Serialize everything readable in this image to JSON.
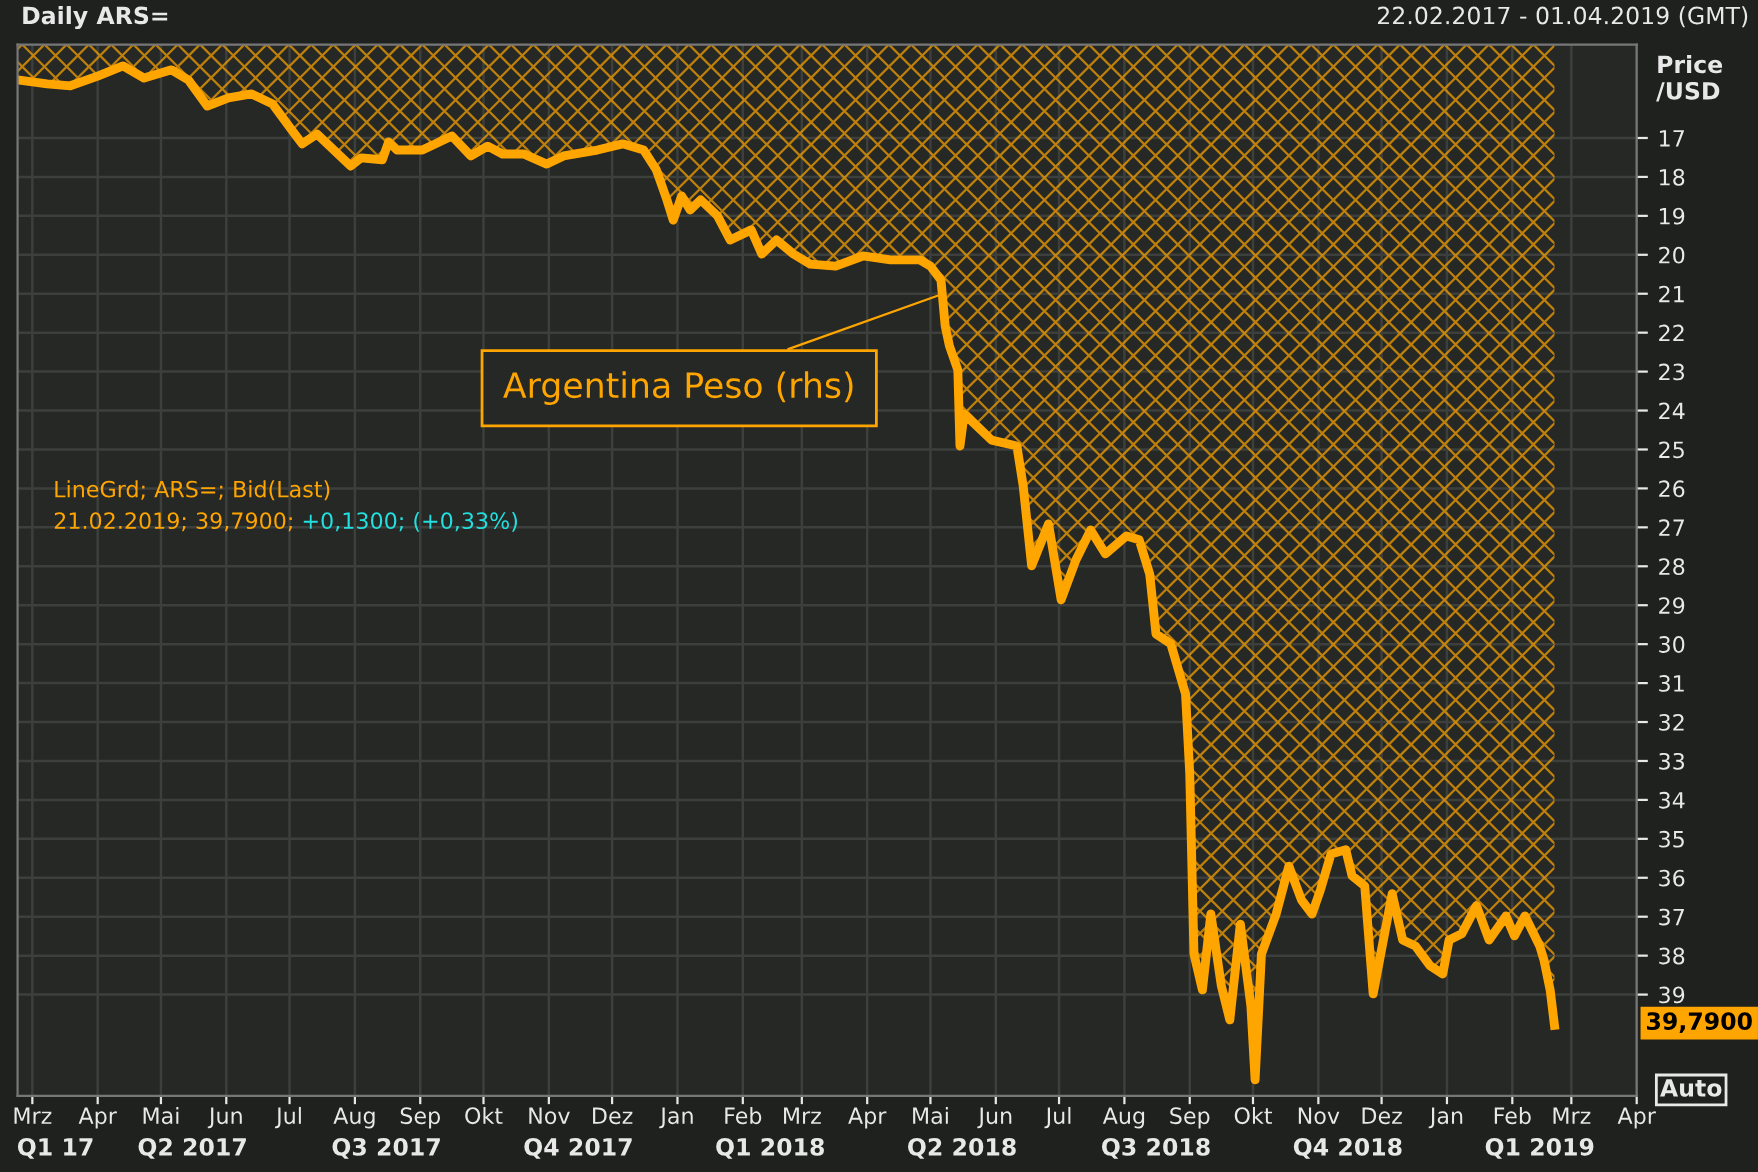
{
  "chart_data": {
    "type": "area",
    "title": "Daily ARS=",
    "subtitle": "22.02.2017 - 01.04.2019 (GMT)",
    "ylabel": "Price\n/USD",
    "x": [
      "2017-02-22",
      "2017-03-08",
      "2017-03-19",
      "2017-04-01",
      "2017-04-13",
      "2017-04-23",
      "2017-05-06",
      "2017-05-14",
      "2017-05-23",
      "2017-06-02",
      "2017-06-13",
      "2017-06-23",
      "2017-07-02",
      "2017-07-07",
      "2017-07-14",
      "2017-07-30",
      "2017-08-04",
      "2017-08-14",
      "2017-08-17",
      "2017-08-21",
      "2017-09-02",
      "2017-09-16",
      "2017-09-25",
      "2017-10-03",
      "2017-10-10",
      "2017-10-20",
      "2017-10-31",
      "2017-11-08",
      "2017-11-24",
      "2017-12-06",
      "2017-12-16",
      "2017-12-22",
      "2017-12-27",
      "2017-12-30",
      "2018-01-03",
      "2018-01-07",
      "2018-01-12",
      "2018-01-20",
      "2018-01-26",
      "2018-02-05",
      "2018-02-10",
      "2018-02-17",
      "2018-02-25",
      "2018-03-05",
      "2018-03-17",
      "2018-03-30",
      "2018-04-12",
      "2018-04-26",
      "2018-05-01",
      "2018-05-06",
      "2018-05-08",
      "2018-05-10",
      "2018-05-14",
      "2018-05-15",
      "2018-05-17",
      "2018-05-30",
      "2018-06-11",
      "2018-06-14",
      "2018-06-18",
      "2018-06-26",
      "2018-07-02",
      "2018-07-09",
      "2018-07-16",
      "2018-07-23",
      "2018-08-02",
      "2018-08-08",
      "2018-08-13",
      "2018-08-16",
      "2018-08-23",
      "2018-08-30",
      "2018-09-01",
      "2018-09-03",
      "2018-09-07",
      "2018-09-11",
      "2018-09-16",
      "2018-09-20",
      "2018-09-25",
      "2018-09-30",
      "2018-10-02",
      "2018-10-05",
      "2018-10-12",
      "2018-10-18",
      "2018-10-24",
      "2018-10-29",
      "2018-11-02",
      "2018-11-07",
      "2018-11-14",
      "2018-11-17",
      "2018-11-23",
      "2018-11-27",
      "2018-12-06",
      "2018-12-11",
      "2018-12-17",
      "2018-12-24",
      "2018-12-30",
      "2019-01-02",
      "2019-01-08",
      "2019-01-15",
      "2019-01-21",
      "2019-01-29",
      "2019-02-02",
      "2019-02-07",
      "2019-02-14",
      "2019-02-16",
      "2019-02-19",
      "2019-02-21"
    ],
    "series": [
      {
        "name": null,
        "color": "#ffa500",
        "values": [
          15.51,
          15.61,
          15.66,
          15.41,
          15.15,
          15.46,
          15.25,
          15.51,
          16.18,
          15.97,
          15.87,
          16.13,
          16.79,
          17.15,
          16.9,
          17.72,
          17.51,
          17.56,
          17.1,
          17.31,
          17.31,
          16.95,
          17.46,
          17.21,
          17.41,
          17.41,
          17.67,
          17.46,
          17.31,
          17.15,
          17.31,
          17.82,
          18.59,
          19.11,
          18.49,
          18.85,
          18.59,
          19.0,
          19.62,
          19.36,
          19.98,
          19.62,
          19.98,
          20.24,
          20.29,
          20.03,
          20.13,
          20.13,
          20.29,
          20.65,
          21.83,
          22.34,
          22.96,
          24.91,
          24.09,
          24.76,
          24.91,
          25.94,
          27.99,
          26.91,
          28.86,
          27.84,
          27.07,
          27.68,
          27.22,
          27.32,
          28.2,
          29.74,
          29.99,
          31.28,
          33.33,
          37.96,
          38.88,
          36.93,
          38.78,
          39.65,
          37.19,
          39.29,
          41.19,
          37.96,
          36.93,
          35.7,
          36.57,
          36.93,
          36.31,
          35.39,
          35.28,
          35.95,
          36.21,
          38.98,
          36.41,
          37.6,
          37.75,
          38.26,
          38.47,
          37.6,
          37.44,
          36.72,
          37.6,
          36.98,
          37.49,
          36.98,
          37.75,
          38.11,
          38.9,
          39.79
        ]
      }
    ],
    "xlim": [
      "2017-02-22",
      "2019-04-01"
    ],
    "xticks": [
      {
        "value": "2017-03-01",
        "label": "Mrz"
      },
      {
        "value": "2017-04-01",
        "label": "Apr"
      },
      {
        "value": "2017-05-01",
        "label": "Mai"
      },
      {
        "value": "2017-06-01",
        "label": "Jun"
      },
      {
        "value": "2017-07-01",
        "label": "Jul"
      },
      {
        "value": "2017-08-01",
        "label": "Aug"
      },
      {
        "value": "2017-09-01",
        "label": "Sep"
      },
      {
        "value": "2017-10-01",
        "label": "Okt"
      },
      {
        "value": "2017-11-01",
        "label": "Nov"
      },
      {
        "value": "2017-12-01",
        "label": "Dez"
      },
      {
        "value": "2018-01-01",
        "label": "Jan"
      },
      {
        "value": "2018-02-01",
        "label": "Feb"
      },
      {
        "value": "2018-03-01",
        "label": "Mrz"
      },
      {
        "value": "2018-04-01",
        "label": "Apr"
      },
      {
        "value": "2018-05-01",
        "label": "Mai"
      },
      {
        "value": "2018-06-01",
        "label": "Jun"
      },
      {
        "value": "2018-07-01",
        "label": "Jul"
      },
      {
        "value": "2018-08-01",
        "label": "Aug"
      },
      {
        "value": "2018-09-01",
        "label": "Sep"
      },
      {
        "value": "2018-10-01",
        "label": "Okt"
      },
      {
        "value": "2018-11-01",
        "label": "Nov"
      },
      {
        "value": "2018-12-01",
        "label": "Dez"
      },
      {
        "value": "2019-01-01",
        "label": "Jan"
      },
      {
        "value": "2019-02-01",
        "label": "Feb"
      },
      {
        "value": "2019-03-01",
        "label": "Mrz"
      },
      {
        "value": "2019-04-01",
        "label": "Apr"
      }
    ],
    "x2lim": [
      "2017-02-22",
      "2019-04-01"
    ],
    "x2ticks": [
      {
        "value": "2017-03-12",
        "label": "Q1 17"
      },
      {
        "value": "2017-05-16",
        "label": "Q2 2017"
      },
      {
        "value": "2017-08-16",
        "label": "Q3 2017"
      },
      {
        "value": "2017-11-15",
        "label": "Q4 2017"
      },
      {
        "value": "2018-02-14",
        "label": "Q1 2018"
      },
      {
        "value": "2018-05-16",
        "label": "Q2 2018"
      },
      {
        "value": "2018-08-16",
        "label": "Q3 2018"
      },
      {
        "value": "2018-11-15",
        "label": "Q4 2018"
      },
      {
        "value": "2019-02-14",
        "label": "Q1 2019"
      }
    ],
    "ylim": [
      41.6,
      14.6
    ],
    "yticks": [
      17,
      18,
      19,
      20,
      21,
      22,
      23,
      24,
      25,
      26,
      27,
      28,
      29,
      30,
      31,
      32,
      33,
      34,
      35,
      36,
      37,
      38,
      39
    ],
    "grid": true,
    "annotations": [
      "LineGrd; ARS=; Bid(Last)",
      "21.02.2019; 39,7900; ",
      "+0,1300; (+0,33%)",
      "Auto",
      "39,7900",
      {
        "text": "Argentina Peso (rhs)",
        "x": "2018-05-07",
        "y": 21.0
      }
    ]
  }
}
